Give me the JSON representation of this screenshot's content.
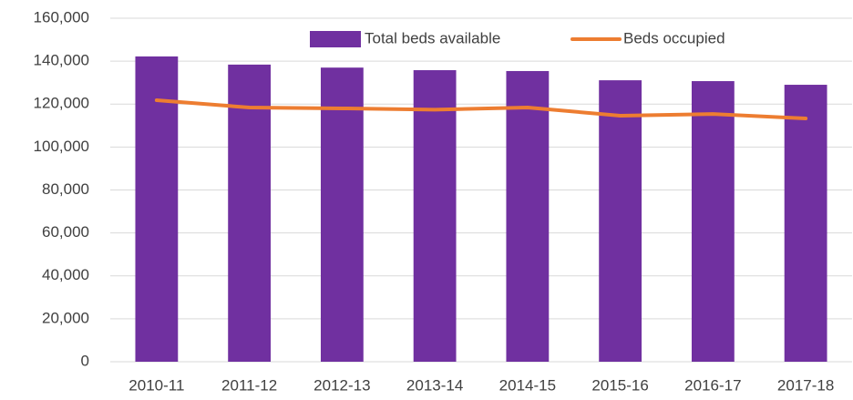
{
  "chart_data": {
    "type": "bar",
    "categories": [
      "2010-11",
      "2011-12",
      "2012-13",
      "2013-14",
      "2014-15",
      "2015-16",
      "2016-17",
      "2017-18"
    ],
    "series": [
      {
        "name": "Total beds available",
        "type": "bar",
        "color": "#7030a0",
        "values": [
          142200,
          138400,
          137000,
          135800,
          135400,
          131100,
          130700,
          129000
        ]
      },
      {
        "name": "Beds occupied",
        "type": "line",
        "color": "#ed7d31",
        "values": [
          121800,
          118400,
          118000,
          117400,
          118400,
          114600,
          115400,
          113300
        ]
      }
    ],
    "ylim": [
      0,
      160000
    ],
    "yticks": [
      0,
      {
        "value": 20000,
        "label": "20,000"
      },
      {
        "value": 40000,
        "label": "40,000"
      },
      {
        "value": 60000,
        "label": "60,000"
      },
      {
        "value": 80000,
        "label": "80,000"
      },
      {
        "value": 100000,
        "label": "100,000"
      },
      {
        "value": 120000,
        "label": "120,000"
      },
      {
        "value": 140000,
        "label": "140,000"
      },
      {
        "value": 160000,
        "label": "160,000"
      }
    ],
    "grid": true,
    "legend": "top"
  }
}
